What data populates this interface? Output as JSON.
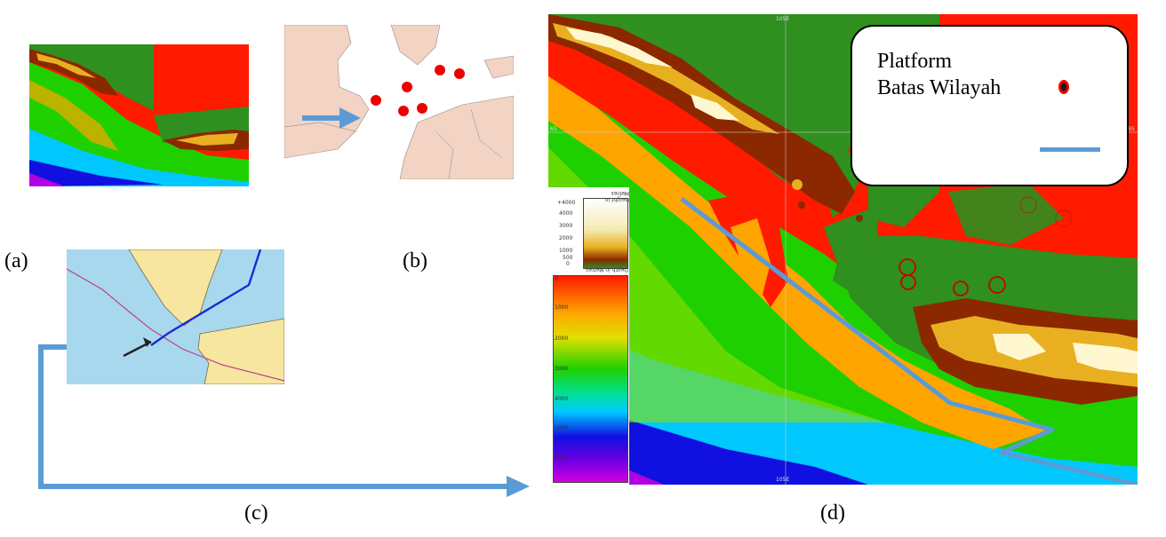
{
  "panels": {
    "a": {
      "label": "(a)"
    },
    "b": {
      "label": "(b)"
    },
    "c": {
      "label": "(c)"
    },
    "d": {
      "label": "(d)"
    }
  },
  "map_d": {
    "grid_labels": {
      "top": "105E",
      "bottom": "105E",
      "left": "6S",
      "right": "6S"
    },
    "legend": {
      "platform": "Platform",
      "boundary": "Batas Wilayah"
    },
    "colorbar": {
      "height_title": "Height in Metres",
      "height_ticks": [
        "+4000",
        "4000",
        "3000",
        "2000",
        "1000",
        "500",
        "0"
      ],
      "depth_title": "Depth in Metres",
      "depth_ticks": [
        "0",
        "1000",
        "2000",
        "3000",
        "4000",
        "5000",
        "6000"
      ]
    }
  },
  "colors": {
    "land_high": "#ffffff",
    "land_mid": "#e8b020",
    "land_low": "#8b2800",
    "shelf": "#2f8f1f",
    "shallow_sea": "#ff1a00",
    "mid_sea": "#ffa500",
    "deep_sea": "#1fd000",
    "deeper_sea": "#00c8ff",
    "abyss": "#1010e0",
    "trench": "#b000e0",
    "boundary_line": "#5b9bd5",
    "platform_dot": "#ee0000"
  }
}
